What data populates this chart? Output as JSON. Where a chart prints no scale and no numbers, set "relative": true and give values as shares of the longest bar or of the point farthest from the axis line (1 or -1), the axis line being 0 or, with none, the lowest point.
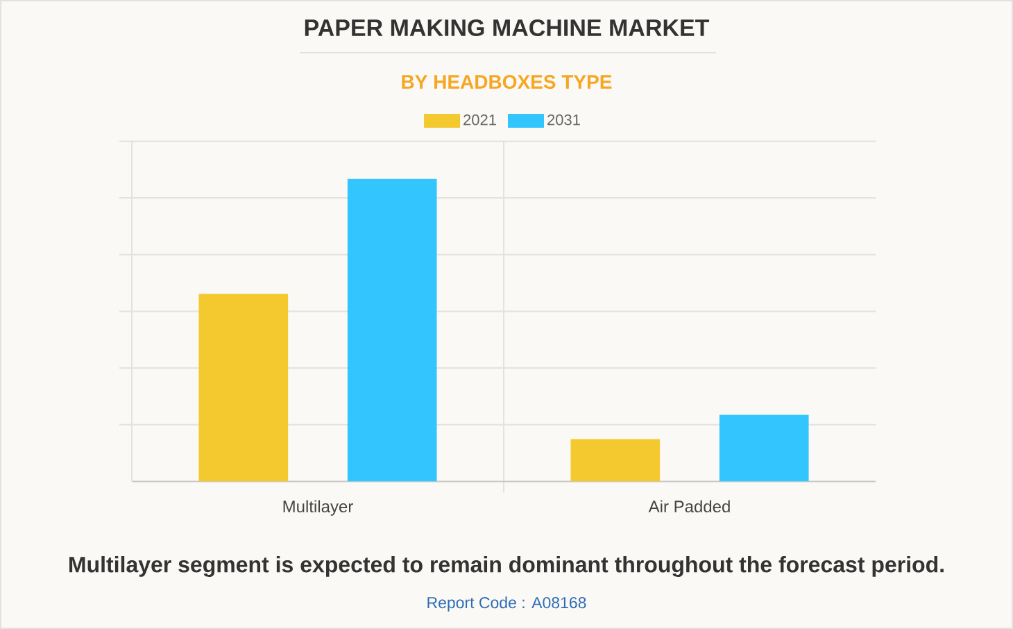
{
  "chart_data": {
    "type": "bar",
    "title": "PAPER MAKING MACHINE MARKET",
    "subtitle": "BY HEADBOXES TYPE",
    "categories": [
      "Multilayer",
      "Air Padded"
    ],
    "series": [
      {
        "name": "2021",
        "color": "#f4c82f",
        "values": [
          0.62,
          0.14
        ]
      },
      {
        "name": "2031",
        "color": "#33c5fe",
        "values": [
          1,
          0.22
        ]
      }
    ],
    "relative": true,
    "grid": true,
    "legend": "top",
    "annotations": [
      "Multilayer segment is expected to remain dominant throughout the forecast period.",
      "Report Code : A08168"
    ]
  }
}
